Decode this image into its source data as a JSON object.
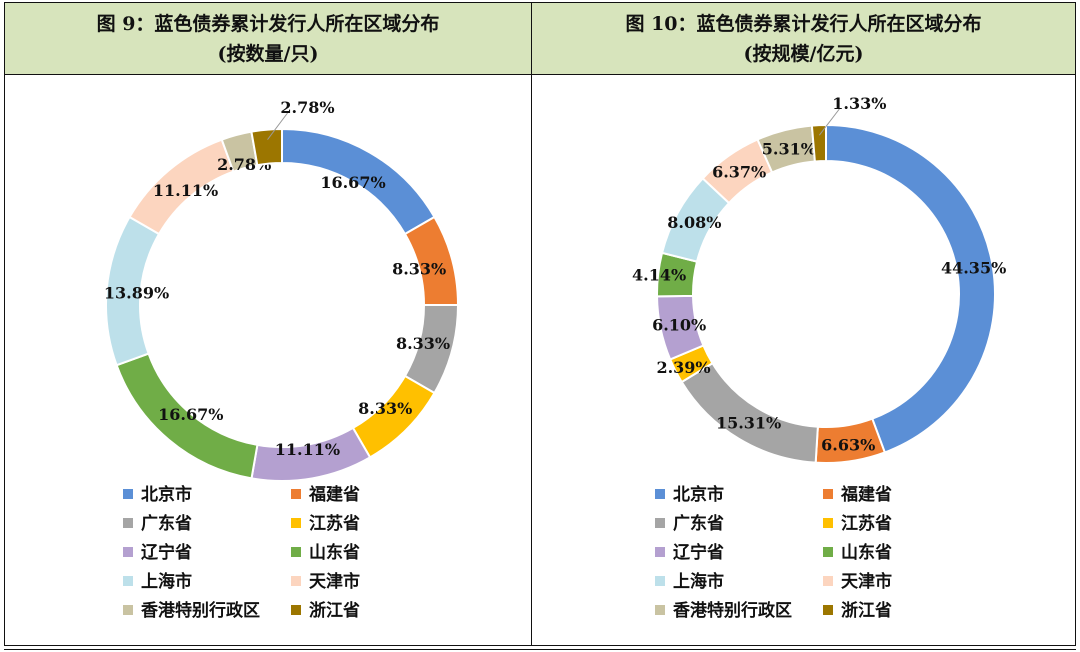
{
  "legend_categories": [
    "北京市",
    "福建省",
    "广东省",
    "江苏省",
    "辽宁省",
    "山东省",
    "上海市",
    "天津市",
    "香港特别行政区",
    "浙江省"
  ],
  "colors": [
    "#5b8fd6",
    "#ed7d31",
    "#a5a5a5",
    "#ffc000",
    "#b4a0d0",
    "#70ad47",
    "#bde0ea",
    "#fcd5bf",
    "#c9c3a2",
    "#9c7600"
  ],
  "chart_data": [
    {
      "type": "pie",
      "title": "图 9：蓝色债券累计发行人所在区域分布",
      "subtitle": "(按数量/只)",
      "categories": [
        "北京市",
        "福建省",
        "广东省",
        "江苏省",
        "辽宁省",
        "山东省",
        "上海市",
        "天津市",
        "香港特别行政区",
        "浙江省"
      ],
      "values": [
        16.67,
        8.33,
        8.33,
        8.33,
        11.11,
        16.67,
        13.89,
        11.11,
        2.78,
        2.78
      ],
      "labels": [
        "16.67%",
        "8.33%",
        "8.33%",
        "8.33%",
        "11.11%",
        "16.67%",
        "13.89%",
        "11.11%",
        "2.78%",
        "2.78%"
      ],
      "legend": "bottom"
    },
    {
      "type": "pie",
      "title": "图 10：蓝色债券累计发行人所在区域分布",
      "subtitle": "(按规模/亿元)",
      "categories": [
        "北京市",
        "福建省",
        "广东省",
        "江苏省",
        "辽宁省",
        "山东省",
        "上海市",
        "天津市",
        "香港特别行政区",
        "浙江省"
      ],
      "values": [
        44.35,
        6.63,
        15.31,
        2.39,
        6.1,
        4.14,
        8.08,
        6.37,
        5.31,
        1.33
      ],
      "labels": [
        "44.35%",
        "6.63%",
        "15.31%",
        "2.39%",
        "6.10%",
        "4.14%",
        "8.08%",
        "6.37%",
        "5.31%",
        "1.33%"
      ],
      "legend": "bottom"
    }
  ]
}
